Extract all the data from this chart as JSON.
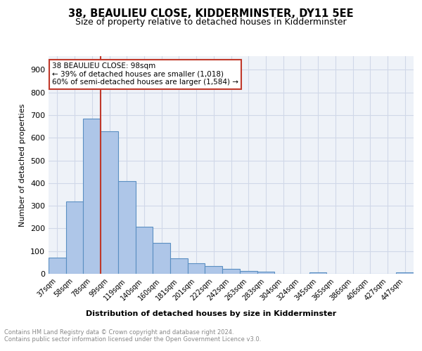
{
  "title": "38, BEAULIEU CLOSE, KIDDERMINSTER, DY11 5EE",
  "subtitle": "Size of property relative to detached houses in Kidderminster",
  "xlabel": "Distribution of detached houses by size in Kidderminster",
  "ylabel": "Number of detached properties",
  "footnote1": "Contains HM Land Registry data © Crown copyright and database right 2024.",
  "footnote2": "Contains public sector information licensed under the Open Government Licence v3.0.",
  "categories": [
    "37sqm",
    "58sqm",
    "78sqm",
    "99sqm",
    "119sqm",
    "140sqm",
    "160sqm",
    "181sqm",
    "201sqm",
    "222sqm",
    "242sqm",
    "263sqm",
    "283sqm",
    "304sqm",
    "324sqm",
    "345sqm",
    "365sqm",
    "386sqm",
    "406sqm",
    "427sqm",
    "447sqm"
  ],
  "values": [
    70,
    320,
    685,
    630,
    410,
    208,
    136,
    68,
    48,
    33,
    22,
    12,
    8,
    0,
    0,
    7,
    0,
    0,
    0,
    0,
    7
  ],
  "bar_color": "#aec6e8",
  "bar_edge_color": "#5a8fc2",
  "bar_edge_width": 0.8,
  "vline_x": 2.5,
  "vline_color": "#c0392b",
  "annotation_line1": "38 BEAULIEU CLOSE: 98sqm",
  "annotation_line2": "← 39% of detached houses are smaller (1,018)",
  "annotation_line3": "60% of semi-detached houses are larger (1,584) →",
  "annotation_box_color": "#c0392b",
  "annotation_fill": "white",
  "ylim": [
    0,
    960
  ],
  "yticks": [
    0,
    100,
    200,
    300,
    400,
    500,
    600,
    700,
    800,
    900
  ],
  "grid_color": "#d0d8e8",
  "background_color": "#eef2f8",
  "title_fontsize": 10.5,
  "subtitle_fontsize": 9
}
